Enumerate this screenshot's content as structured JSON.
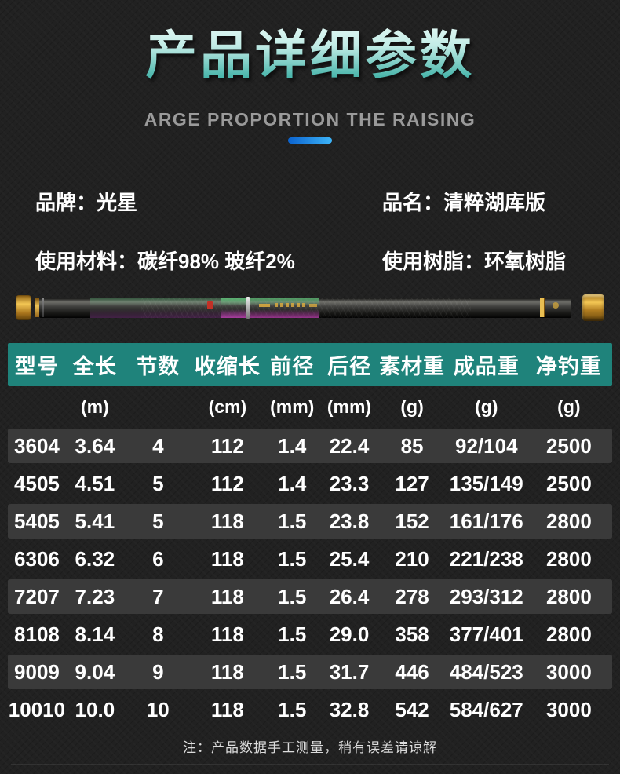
{
  "header": {
    "title": "产品详细参数",
    "subtitle": "ARGE PROPORTION THE RAISING"
  },
  "info": {
    "brand": "品牌：光星",
    "name": "品名：清粹湖库版",
    "material": "使用材料：碳纤98% 玻纤2%",
    "resin": "使用树脂：环氧树脂"
  },
  "table": {
    "headers": [
      "型号",
      "全长",
      "节数",
      "收缩长",
      "前径",
      "后径",
      "素材重",
      "成品重",
      "净钓重"
    ],
    "units": [
      "",
      "(m)",
      "",
      "(cm)",
      "(mm)",
      "(mm)",
      "(g)",
      "(g)",
      "(g)"
    ],
    "rows": [
      [
        "3604",
        "3.64",
        "4",
        "112",
        "1.4",
        "22.4",
        "85",
        "92/104",
        "2500"
      ],
      [
        "4505",
        "4.51",
        "5",
        "112",
        "1.4",
        "23.3",
        "127",
        "135/149",
        "2500"
      ],
      [
        "5405",
        "5.41",
        "5",
        "118",
        "1.5",
        "23.8",
        "152",
        "161/176",
        "2800"
      ],
      [
        "6306",
        "6.32",
        "6",
        "118",
        "1.5",
        "25.4",
        "210",
        "221/238",
        "2800"
      ],
      [
        "7207",
        "7.23",
        "7",
        "118",
        "1.5",
        "26.4",
        "278",
        "293/312",
        "2800"
      ],
      [
        "8108",
        "8.14",
        "8",
        "118",
        "1.5",
        "29.0",
        "358",
        "377/401",
        "2800"
      ],
      [
        "9009",
        "9.04",
        "9",
        "118",
        "1.5",
        "31.7",
        "446",
        "484/523",
        "3000"
      ],
      [
        "10010",
        "10.0",
        "10",
        "118",
        "1.5",
        "32.8",
        "542",
        "584/627",
        "3000"
      ]
    ]
  },
  "note": "注：产品数据手工测量，稍有误差请谅解",
  "colors": {
    "accent_teal_header": "#1f837b",
    "title_gradient_top": "#f0fdfa",
    "title_gradient_bottom": "#1d9c93",
    "underline_blue_start": "#0b63cf",
    "underline_blue_end": "#3db4f8",
    "row_light": "#3a3a3a",
    "page_background": "#212121",
    "subtitle_gray": "#9a9a9a"
  }
}
